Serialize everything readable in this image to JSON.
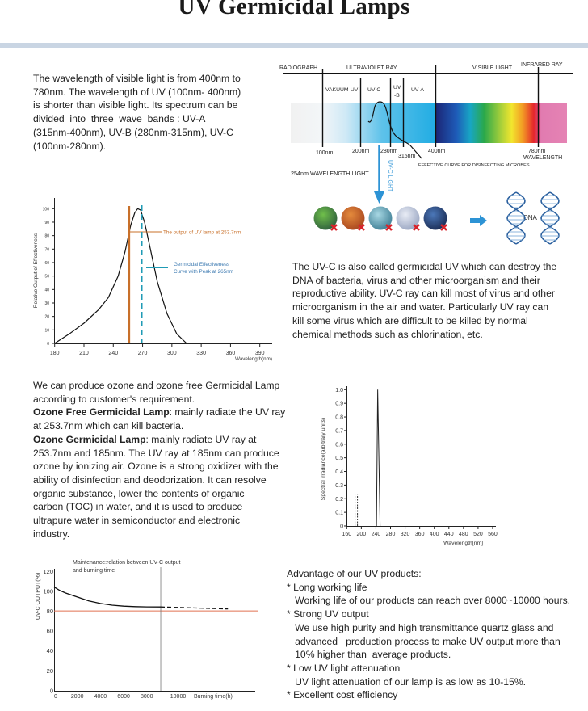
{
  "title": "UV Germicidal Lamps",
  "colors": {
    "band": "#c9d5e3",
    "lamp_line": "#c8702a",
    "effectiveness_line": "#1f9bb5",
    "threshold_line": "#e07050",
    "uvc_light": "#3a9ad9"
  },
  "intro_lines": [
    "The wavelength of visible light is from 400nm to",
    "780nm. The wavelength of UV (100nm- 400nm)",
    "is shorter than visible light. Its spectrum can be",
    "divided  into  three  wave  bands : UV-A",
    "(315nm-400nm), UV-B (280nm-315nm), UV-C",
    "(100nm-280nm)."
  ],
  "uvc_lines": [
    "The UV-C is also called germicidal UV which can destroy the",
    "DNA of bacteria, virus and other microorganism and their",
    "reproductive ability. UV-C ray can kill most of virus and other",
    "microorganism in the air and water. Particularly UV ray can",
    "kill some virus which are difficult to be killed by normal",
    "chemical methods such as chlorination, etc."
  ],
  "ozone_lines": [
    {
      "b": "",
      "t": "We can produce ozone and ozone free Germicidal Lamp"
    },
    {
      "b": "",
      "t": "according to customer's requirement."
    },
    {
      "b": "Ozone Free Germicidal Lamp",
      "t": ": mainly radiate the UV ray"
    },
    {
      "b": "",
      "t": "at 253.7nm which can kill bacteria."
    },
    {
      "b": "Ozone Germicidal Lamp",
      "t": ": mainly radiate UV ray at"
    },
    {
      "b": "",
      "t": "253.7nm and 185nm. The UV ray at 185nm can produce"
    },
    {
      "b": "",
      "t": "ozone by ionizing air. Ozone is a strong oxidizer with the"
    },
    {
      "b": "",
      "t": "ability of disinfection and deodorization. It can resolve"
    },
    {
      "b": "",
      "t": "organic substance, lower the contents of organic"
    },
    {
      "b": "",
      "t": "carbon (TOC) in water, and it is used to produce"
    },
    {
      "b": "",
      "t": "ultrapure water in semiconductor and electronic"
    },
    {
      "b": "",
      "t": "industry."
    }
  ],
  "advantages_lines": [
    "Advantage of our UV products:",
    "* Long working life",
    "   Working life of our products can reach over 8000~10000 hours.",
    "* Strong UV output",
    "   We use high purity and high transmittance quartz glass and",
    "   advanced   production process to make UV output more than",
    "   10% higher than  average products.",
    "* Low UV light attenuation",
    "   UV light attenuation of our lamp is as low as 10-15%.",
    "* Excellent cost efficiency"
  ],
  "spectrum_diagram": {
    "bands_top": [
      "RADIOGRAPH",
      "ULTRAVIOLET RAY",
      "VISIBLE LIGHT",
      "INFRARED RAY"
    ],
    "bands_uv": [
      "VAKUUM-UV",
      "UV-C",
      "UV",
      "-B",
      "UV-A"
    ],
    "wavelength_labels": [
      "100nm",
      "200nm",
      "280nm",
      "315nm",
      "400nm",
      "780nm"
    ],
    "axis_label": "WAVELENGTH",
    "curve_label": "EFFECTIVE CURVE FOR DISINFECTING MICROBES",
    "light_label": "254nm WAVELENGTH LIGHT",
    "uvc_label": "UV-C LIGHT",
    "dna_label": "DNA",
    "microbe_count": 5
  },
  "chart_data": [
    {
      "type": "line",
      "xlabel": "Wavelength(nm)",
      "ylabel": "Relative Output of Effectiveness",
      "xlim": [
        180,
        390
      ],
      "ylim": [
        0,
        100
      ],
      "xticks": [
        180,
        210,
        240,
        270,
        300,
        330,
        360,
        390
      ],
      "yticks": [
        0,
        10,
        20,
        30,
        40,
        50,
        60,
        70,
        80,
        90,
        100
      ],
      "x": [
        180,
        195,
        210,
        225,
        235,
        245,
        252,
        258,
        262,
        265,
        268,
        272,
        278,
        285,
        295,
        305,
        315
      ],
      "y": [
        0,
        7,
        15,
        25,
        34,
        50,
        68,
        88,
        97,
        100,
        99,
        90,
        70,
        46,
        22,
        7,
        0
      ],
      "annotations": [
        {
          "text": "The output of UV lamp at 253.7nm",
          "x": 253.7,
          "style": "solid",
          "color": "#c8702a"
        },
        {
          "text": "Germicidal Effectiveness Curve with Peak at 265nm",
          "lines": [
            "Germicidal Effectiveness",
            "Curve with Peak at 265nm"
          ],
          "x": 265,
          "style": "dashed",
          "color": "#1f9bb5"
        }
      ]
    },
    {
      "type": "bar",
      "xlabel": "Wavelength[nm]",
      "ylabel": "Spectral irradiance(arbitrary units)",
      "xlim": [
        160,
        560
      ],
      "ylim": [
        0,
        1.0
      ],
      "xticks": [
        160,
        200,
        240,
        280,
        320,
        360,
        400,
        440,
        480,
        520,
        560
      ],
      "yticks": [
        "0",
        "0.1",
        "0.2",
        "0.3",
        "0.4",
        "0.5",
        "0.6",
        "0.7",
        "0.8",
        "0.9",
        "1.0"
      ],
      "series": [
        {
          "x": 185,
          "value": 0.23,
          "style": "dashed"
        },
        {
          "x": 253.7,
          "value": 1.0,
          "style": "solid"
        }
      ]
    },
    {
      "type": "line",
      "title": "Maintenance:relation between UV-C output",
      "title2": "and burning time",
      "xlabel": "Burning time(h)",
      "ylabel": "UV-C OUTPUT(%)",
      "ylim": [
        0,
        120
      ],
      "xticks": [
        0,
        2000,
        4000,
        6000,
        8000,
        10000
      ],
      "yticks": [
        0,
        20,
        40,
        60,
        80,
        100,
        120
      ],
      "measured": {
        "x": [
          0,
          500,
          1000,
          2000,
          3000,
          4000,
          5000,
          6000,
          7000,
          8000,
          9200
        ],
        "y": [
          104,
          100.5,
          98,
          94,
          90,
          87.5,
          85.8,
          84.8,
          84.3,
          84.1,
          84
        ]
      },
      "projected": {
        "x": [
          9200,
          15000
        ],
        "y": [
          84,
          82
        ]
      },
      "threshold": 80,
      "marker_x": 9200
    }
  ]
}
